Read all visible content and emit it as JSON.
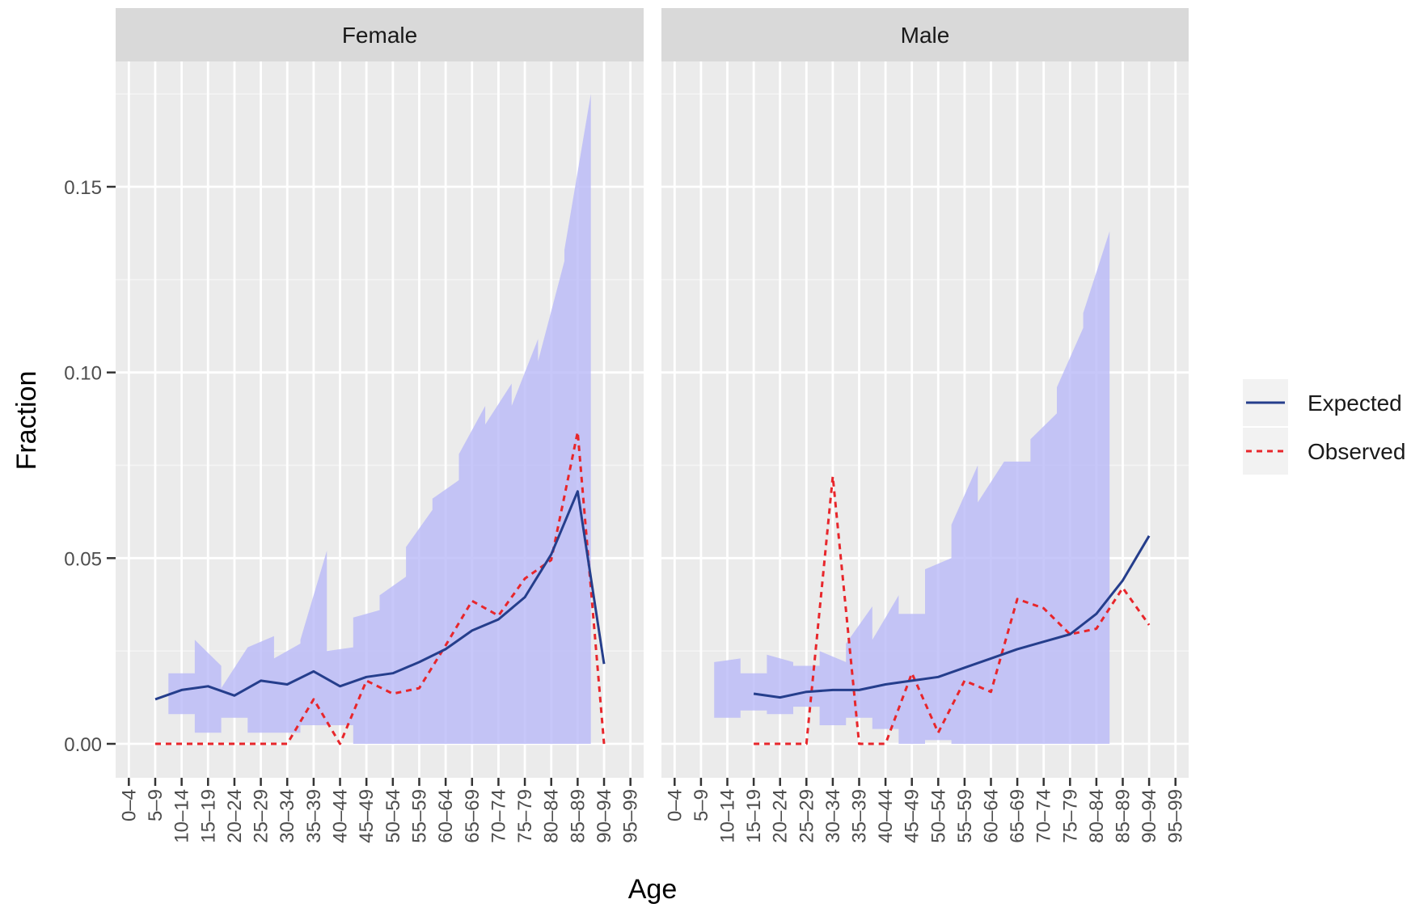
{
  "chart_data": {
    "type": "line",
    "xlabel": "Age",
    "ylabel": "Fraction",
    "ylim": [
      -0.009,
      0.178
    ],
    "yticks": [
      0.0,
      0.05,
      0.1,
      0.15
    ],
    "ytick_labels": [
      "0.00",
      "0.05",
      "0.10",
      "0.15"
    ],
    "categories": [
      "0–4",
      "5–9",
      "10–14",
      "15–19",
      "20–24",
      "25–29",
      "30–34",
      "35–39",
      "40–44",
      "45–49",
      "50–54",
      "55–59",
      "60–64",
      "65–69",
      "70–74",
      "75–79",
      "80–84",
      "85–89",
      "90–94",
      "95–99"
    ],
    "grid": true,
    "legend_position": "right",
    "legend": [
      {
        "name": "Expected",
        "color": "#253e8c",
        "style": "solid"
      },
      {
        "name": "Observed",
        "color": "#e8262b",
        "style": "dashed"
      }
    ],
    "band_color": "#b9b9f7",
    "panels": [
      {
        "label": "Female",
        "band_start": 1,
        "band_steps": [
          [
            0.012,
            0.012,
            0.012
          ],
          [
            0.008,
            0.019,
            0.019
          ],
          [
            0.003,
            0.028,
            0.021
          ],
          [
            0.007,
            0.015,
            0.026
          ],
          [
            0.003,
            0.026,
            0.029
          ],
          [
            0.003,
            0.023,
            0.027
          ],
          [
            0.005,
            0.028,
            0.052
          ],
          [
            0.005,
            0.025,
            0.026
          ],
          [
            0.0,
            0.034,
            0.036
          ],
          [
            0.0,
            0.04,
            0.045
          ],
          [
            0.0,
            0.053,
            0.063
          ],
          [
            0.0,
            0.066,
            0.071
          ],
          [
            0.0,
            0.078,
            0.091
          ],
          [
            0.0,
            0.086,
            0.097
          ],
          [
            0.0,
            0.091,
            0.109
          ],
          [
            0.0,
            0.103,
            0.13
          ],
          [
            0.0,
            0.133,
            0.175
          ]
        ],
        "expected": {
          "start": 1,
          "values": [
            0.012,
            0.0145,
            0.0155,
            0.013,
            0.017,
            0.016,
            0.0195,
            0.0155,
            0.018,
            0.019,
            0.022,
            0.0255,
            0.0305,
            0.0335,
            0.0395,
            0.051,
            0.068,
            0.0215
          ]
        },
        "observed": {
          "start": 1,
          "values": [
            0,
            0,
            0,
            0,
            0,
            0,
            0.012,
            0,
            0.017,
            0.0135,
            0.015,
            0.0265,
            0.0385,
            0.0345,
            0.0445,
            0.0495,
            0.084,
            0
          ]
        }
      },
      {
        "label": "Male",
        "band_start": 2,
        "band_steps": [
          [
            0.007,
            0.022,
            0.023
          ],
          [
            0.009,
            0.019,
            0.019
          ],
          [
            0.008,
            0.024,
            0.022
          ],
          [
            0.01,
            0.021,
            0.021
          ],
          [
            0.005,
            0.025,
            0.022
          ],
          [
            0.007,
            0.027,
            0.037
          ],
          [
            0.004,
            0.028,
            0.04
          ],
          [
            0.0,
            0.035,
            0.035
          ],
          [
            0.001,
            0.047,
            0.05
          ],
          [
            0.0,
            0.059,
            0.075
          ],
          [
            0.0,
            0.065,
            0.076
          ],
          [
            0.0,
            0.076,
            0.076
          ],
          [
            0.0,
            0.082,
            0.089
          ],
          [
            0.0,
            0.096,
            0.112
          ],
          [
            0.0,
            0.116,
            0.138
          ]
        ],
        "expected": {
          "start": 3,
          "values": [
            0.0135,
            0.0125,
            0.014,
            0.0145,
            0.0145,
            0.016,
            0.017,
            0.018,
            0.0205,
            0.023,
            0.0255,
            0.0275,
            0.0295,
            0.035,
            0.044,
            0.056
          ]
        },
        "observed": {
          "start": 3,
          "values": [
            0,
            0,
            0,
            0.072,
            0,
            0,
            0.019,
            0.003,
            0.017,
            0.014,
            0.039,
            0.0365,
            0.0295,
            0.031,
            0.042,
            0.032
          ]
        }
      }
    ]
  }
}
